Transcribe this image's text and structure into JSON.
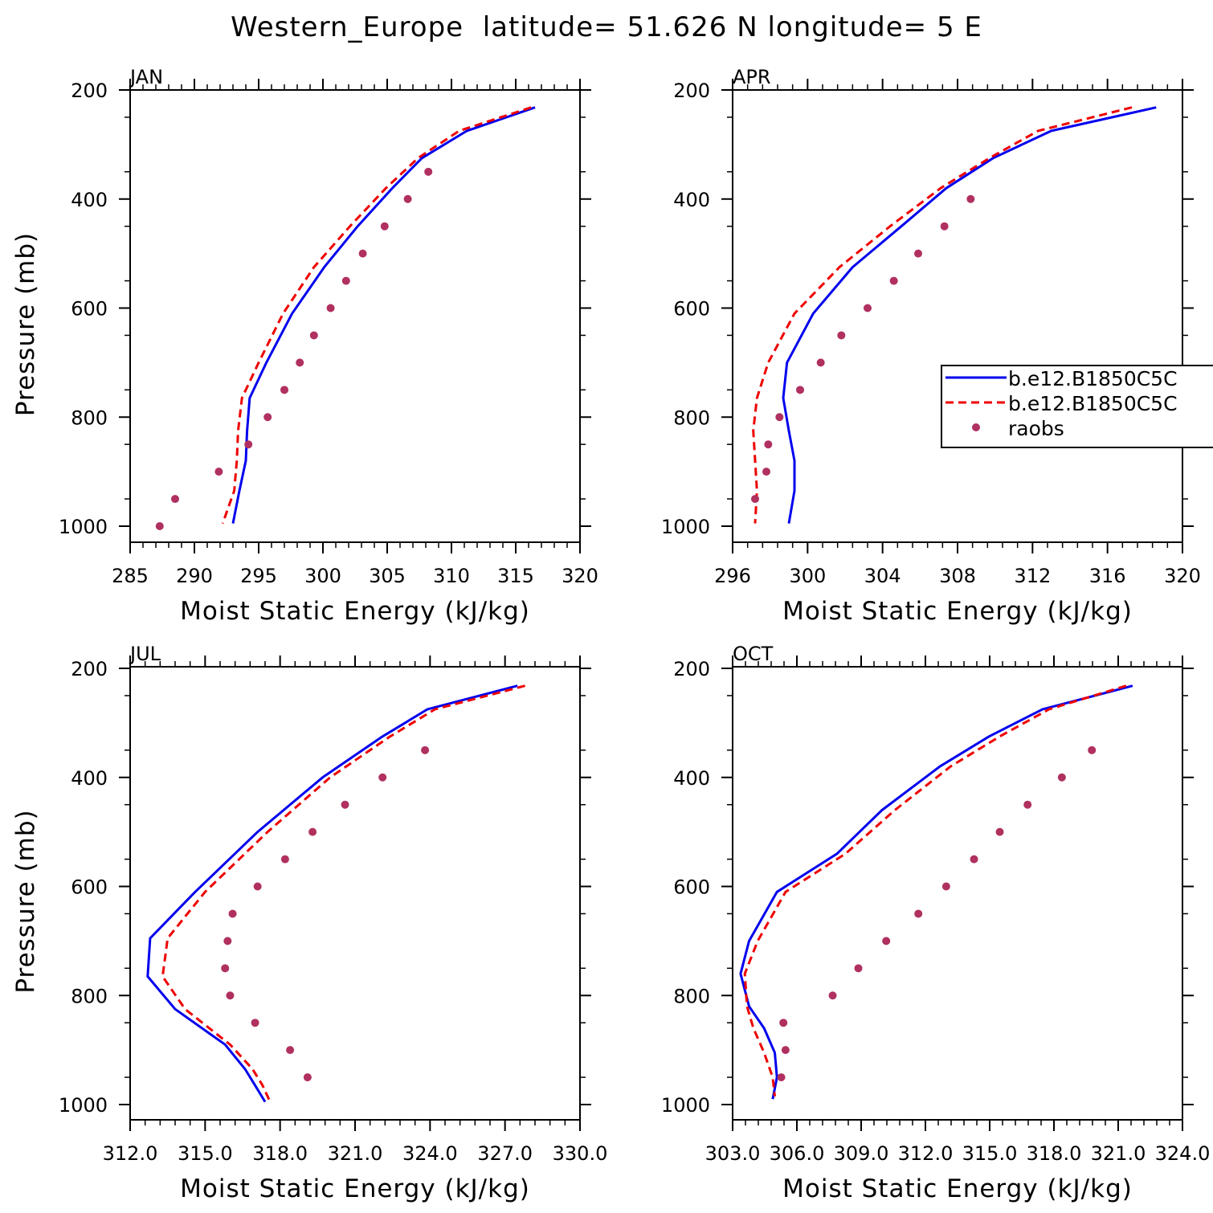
{
  "title": "Western_Europe  latitude= 51.626 N longitude= 5 E",
  "colors": {
    "model1": "#0000ee",
    "model2": "#ee0000",
    "raobs": "#b03060"
  },
  "legend": {
    "entries": [
      {
        "label": "b.e12.B1850C5C",
        "style": "solid",
        "color": "#0000ee"
      },
      {
        "label": "b.e12.B1850C5C",
        "style": "dashed",
        "color": "#ee0000"
      },
      {
        "label": "raobs",
        "style": "dot",
        "color": "#b03060"
      }
    ],
    "placement": "right, inside APR panel"
  },
  "chart_data": [
    {
      "type": "line",
      "panel": "JAN",
      "xlabel": "Moist Static Energy (kJ/kg)",
      "ylabel": "Pressure (mb)",
      "xlim": [
        285,
        320
      ],
      "ylim": [
        200,
        1000
      ],
      "y_inverted": true,
      "xticks": [
        285,
        290,
        295,
        300,
        305,
        310,
        315,
        320
      ],
      "xtick_labels": [
        "285",
        "290",
        "295",
        "300",
        "305",
        "310",
        "315",
        "320"
      ],
      "yticks": [
        200,
        400,
        600,
        800,
        1000
      ],
      "ytick_labels": [
        "200",
        "400",
        "600",
        "800",
        "1000"
      ],
      "series": [
        {
          "name": "b.e12.B1850C5C",
          "style": "solid",
          "color": "#0000ee",
          "x": [
            316.5,
            311.2,
            307.7,
            305.4,
            302.7,
            300.1,
            297.6,
            295.6,
            294.3,
            294.1,
            294.0,
            293.5,
            293.0
          ],
          "y": [
            232,
            275,
            325,
            380,
            450,
            525,
            610,
            700,
            765,
            825,
            880,
            935,
            995
          ]
        },
        {
          "name": "b.e12.B1850C5C",
          "style": "dashed",
          "color": "#ee0000",
          "x": [
            316.2,
            310.6,
            307.4,
            304.9,
            302.1,
            299.3,
            296.9,
            295.0,
            293.7,
            293.4,
            293.3,
            293.1,
            292.2
          ],
          "y": [
            232,
            275,
            325,
            380,
            450,
            525,
            610,
            700,
            765,
            825,
            880,
            935,
            995
          ]
        },
        {
          "name": "raobs",
          "style": "dot",
          "color": "#b03060",
          "x": [
            308.2,
            306.6,
            304.8,
            303.1,
            301.8,
            300.6,
            299.3,
            298.2,
            297.0,
            295.7,
            294.2,
            291.9,
            288.5,
            287.3
          ],
          "y": [
            350,
            400,
            450,
            500,
            550,
            600,
            650,
            700,
            750,
            800,
            850,
            900,
            950,
            1000
          ]
        }
      ]
    },
    {
      "type": "line",
      "panel": "APR",
      "xlabel": "Moist Static Energy (kJ/kg)",
      "ylabel": "",
      "xlim": [
        296,
        320
      ],
      "ylim": [
        200,
        1000
      ],
      "y_inverted": true,
      "xticks": [
        296,
        300,
        304,
        308,
        312,
        316,
        320
      ],
      "xtick_labels": [
        "296",
        "300",
        "304",
        "308",
        "312",
        "316",
        "320"
      ],
      "yticks": [
        200,
        400,
        600,
        800,
        1000
      ],
      "ytick_labels": [
        "200",
        "400",
        "600",
        "800",
        "1000"
      ],
      "series": [
        {
          "name": "b.e12.B1850C5C",
          "style": "solid",
          "color": "#0000ee",
          "x": [
            318.6,
            313.0,
            309.9,
            307.4,
            305.0,
            302.4,
            300.3,
            298.9,
            298.7,
            299.0,
            299.3,
            299.3,
            299.0
          ],
          "y": [
            232,
            275,
            325,
            380,
            450,
            525,
            610,
            700,
            765,
            825,
            880,
            935,
            995
          ]
        },
        {
          "name": "b.e12.B1850C5C",
          "style": "dashed",
          "color": "#ee0000",
          "x": [
            317.3,
            312.3,
            309.7,
            307.1,
            304.4,
            301.7,
            299.3,
            297.9,
            297.3,
            297.1,
            297.2,
            297.3,
            297.2
          ],
          "y": [
            232,
            275,
            325,
            380,
            450,
            525,
            610,
            700,
            765,
            825,
            880,
            935,
            995
          ]
        },
        {
          "name": "raobs",
          "style": "dot",
          "color": "#b03060",
          "x": [
            308.7,
            307.3,
            305.9,
            304.6,
            303.2,
            301.8,
            300.7,
            299.6,
            298.5,
            297.9,
            297.8,
            297.2
          ],
          "y": [
            400,
            450,
            500,
            550,
            600,
            650,
            700,
            750,
            800,
            850,
            900,
            950
          ]
        }
      ]
    },
    {
      "type": "line",
      "panel": "JUL",
      "xlabel": "Moist Static Energy (kJ/kg)",
      "ylabel": "Pressure (mb)",
      "xlim": [
        312,
        330
      ],
      "ylim": [
        200,
        1000
      ],
      "y_inverted": true,
      "xticks": [
        312,
        315,
        318,
        321,
        324,
        327,
        330
      ],
      "xtick_labels": [
        "312.0",
        "315.0",
        "318.0",
        "321.0",
        "324.0",
        "327.0",
        "330.0"
      ],
      "yticks": [
        200,
        400,
        600,
        800,
        1000
      ],
      "ytick_labels": [
        "200",
        "400",
        "600",
        "800",
        "1000"
      ],
      "series": [
        {
          "name": "b.e12.B1850C5C",
          "style": "solid",
          "color": "#0000ee",
          "x": [
            327.5,
            323.9,
            322.1,
            319.7,
            317.1,
            314.6,
            312.8,
            312.7,
            313.8,
            315.8,
            316.6,
            317.0,
            317.4
          ],
          "y": [
            232,
            275,
            325,
            400,
            500,
            610,
            695,
            765,
            825,
            890,
            935,
            965,
            995
          ]
        },
        {
          "name": "b.e12.B1850C5C",
          "style": "dashed",
          "color": "#ee0000",
          "x": [
            327.8,
            324.2,
            322.4,
            320.0,
            317.5,
            315.0,
            313.5,
            313.3,
            314.2,
            316.0,
            316.9,
            317.3,
            317.6
          ],
          "y": [
            232,
            275,
            325,
            400,
            500,
            610,
            695,
            765,
            825,
            890,
            935,
            965,
            995
          ]
        },
        {
          "name": "raobs",
          "style": "dot",
          "color": "#b03060",
          "x": [
            323.8,
            322.1,
            320.6,
            319.3,
            318.2,
            317.1,
            316.1,
            315.9,
            315.8,
            316.0,
            317.0,
            318.4,
            319.1
          ],
          "y": [
            350,
            400,
            450,
            500,
            550,
            600,
            650,
            700,
            750,
            800,
            850,
            900,
            950
          ]
        }
      ]
    },
    {
      "type": "line",
      "panel": "OCT",
      "xlabel": "Moist Static Energy (kJ/kg)",
      "ylabel": "",
      "xlim": [
        303.03,
        324.03
      ],
      "ylim": [
        200,
        1000
      ],
      "y_inverted": true,
      "xticks": [
        303.03,
        306.03,
        309.03,
        312.03,
        315.03,
        318.03,
        321.03,
        324.03
      ],
      "xtick_labels": [
        "303.0",
        "306.0",
        "309.0",
        "312.0",
        "315.0",
        "318.0",
        "321.0",
        "324.0"
      ],
      "yticks": [
        200,
        400,
        600,
        800,
        1000
      ],
      "ytick_labels": [
        "200",
        "400",
        "600",
        "800",
        "1000"
      ],
      "series": [
        {
          "name": "b.e12.B1850C5C",
          "style": "solid",
          "color": "#0000ee",
          "x": [
            321.7,
            317.5,
            315.0,
            312.7,
            310.0,
            307.9,
            305.1,
            303.8,
            303.4,
            303.8,
            304.5,
            305.0,
            305.1,
            304.9
          ],
          "y": [
            232,
            275,
            325,
            380,
            460,
            540,
            610,
            700,
            760,
            820,
            860,
            905,
            950,
            990
          ]
        },
        {
          "name": "b.e12.B1850C5C",
          "style": "dashed",
          "color": "#ee0000",
          "x": [
            321.4,
            317.8,
            315.5,
            313.2,
            310.6,
            308.3,
            305.5,
            304.2,
            303.6,
            303.7,
            304.0,
            304.5,
            304.9,
            305.0
          ],
          "y": [
            232,
            275,
            325,
            380,
            460,
            540,
            610,
            700,
            760,
            820,
            860,
            905,
            950,
            985
          ]
        },
        {
          "name": "raobs",
          "style": "dot",
          "color": "#b03060",
          "x": [
            319.8,
            318.4,
            316.8,
            315.5,
            314.3,
            313.0,
            311.7,
            310.2,
            308.9,
            307.7,
            305.4,
            305.5,
            305.3
          ],
          "y": [
            350,
            400,
            450,
            500,
            550,
            600,
            650,
            700,
            750,
            800,
            850,
            900,
            950
          ]
        }
      ]
    }
  ]
}
